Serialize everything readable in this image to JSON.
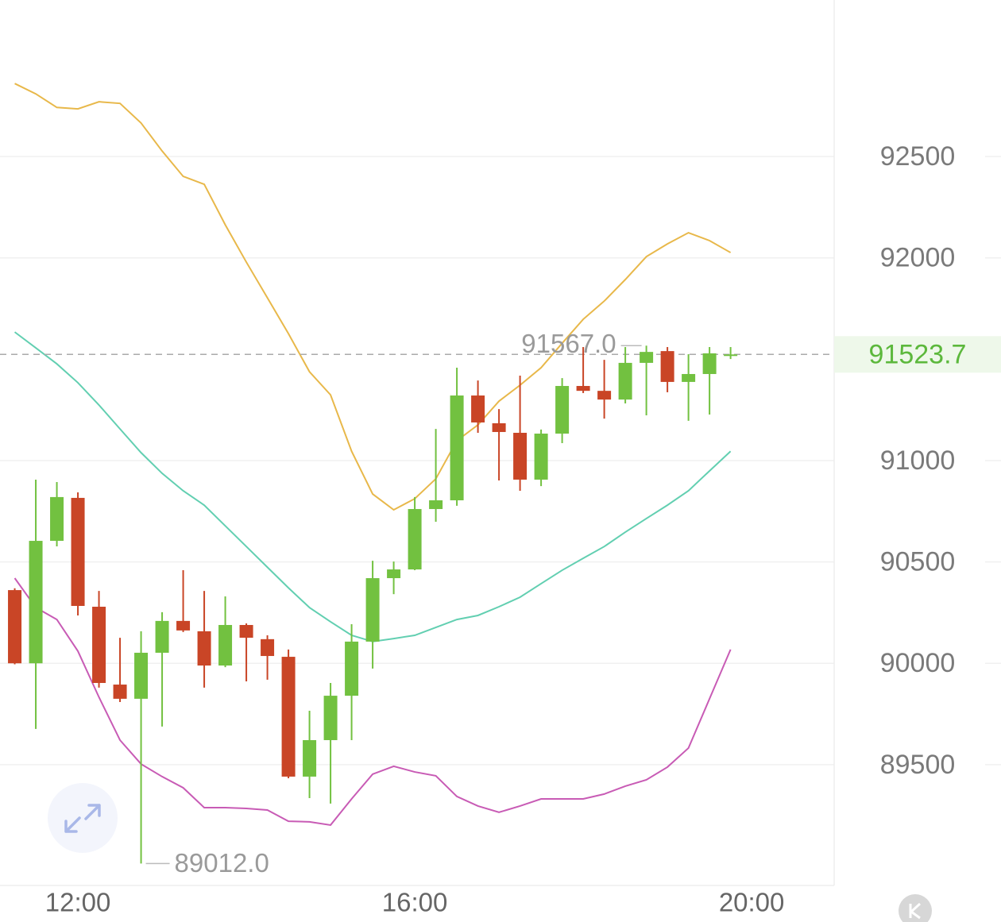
{
  "chart_data": {
    "type": "candlestick",
    "x": [
      11.25,
      11.5,
      11.75,
      12,
      12.25,
      12.5,
      12.75,
      13,
      13.25,
      13.5,
      13.75,
      14,
      14.25,
      14.5,
      14.75,
      15,
      15.25,
      15.5,
      15.75,
      16,
      16.25,
      16.5,
      16.75,
      17,
      17.25,
      17.5,
      17.75,
      18,
      18.25,
      18.5,
      18.75,
      19,
      19.25,
      19.5,
      19.75
    ],
    "open": [
      90361,
      90000,
      90604,
      90816,
      90279,
      89895,
      89825,
      90052,
      90209,
      90158,
      89989,
      90189,
      90119,
      90032,
      89441,
      89621,
      89840,
      90107,
      90420,
      90463,
      90761,
      90804,
      91321,
      91184,
      91137,
      90906,
      91133,
      91368,
      91344,
      91301,
      91482,
      91540,
      91388,
      91427,
      91517
    ],
    "high": [
      90370,
      90906,
      90894,
      90843,
      90357,
      90126,
      90158,
      90252,
      90459,
      90357,
      90330,
      90197,
      90138,
      90068,
      89766,
      89903,
      90193,
      90506,
      90502,
      90820,
      91156,
      91458,
      91395,
      91254,
      91419,
      91153,
      91407,
      91560,
      91497,
      91560,
      91567,
      91560,
      91525,
      91560,
      91560
    ],
    "low": [
      89995,
      89676,
      90577,
      90236,
      89880,
      89809,
      89012,
      89688,
      90154,
      89880,
      89981,
      89911,
      89919,
      89433,
      89335,
      89308,
      89621,
      89974,
      90341,
      90459,
      90698,
      90777,
      91137,
      90902,
      90851,
      90874,
      91086,
      91333,
      91207,
      91282,
      91223,
      91337,
      91196,
      91227,
      91501
    ],
    "close": [
      90000,
      90604,
      90820,
      90283,
      89903,
      89825,
      90052,
      90209,
      90162,
      89989,
      90189,
      90126,
      90036,
      89441,
      89621,
      89840,
      90107,
      90420,
      90463,
      90761,
      90804,
      91321,
      91188,
      91141,
      90906,
      91133,
      91368,
      91344,
      91301,
      91482,
      91536,
      91388,
      91427,
      91529,
      91523.7
    ],
    "up_color": "#72c140",
    "down_color": "#c94526",
    "bands": [
      {
        "color": "#e8b84a",
        "values": [
          92860,
          92809,
          92742,
          92735,
          92770,
          92762,
          92665,
          92527,
          92402,
          92363,
          92163,
          91979,
          91803,
          91626,
          91438,
          91324,
          91046,
          90835,
          90757,
          90812,
          90910,
          91098,
          91176,
          91293,
          91372,
          91458,
          91579,
          91697,
          91787,
          91893,
          92006,
          92069,
          92124,
          92085,
          92026
        ]
      },
      {
        "color": "#62cfb1",
        "values": [
          91634,
          91556,
          91477,
          91384,
          91274,
          91156,
          91039,
          90937,
          90851,
          90780,
          90678,
          90576,
          90474,
          90372,
          90275,
          90205,
          90138,
          90107,
          90122,
          90138,
          90177,
          90216,
          90236,
          90279,
          90326,
          90393,
          90459,
          90518,
          90576,
          90647,
          90714,
          90780,
          90851,
          90949,
          91046
        ]
      },
      {
        "color": "#c85bb5",
        "values": [
          90420,
          90275,
          90216,
          90060,
          89833,
          89621,
          89503,
          89441,
          89386,
          89288,
          89288,
          89284,
          89276,
          89221,
          89218,
          89202,
          89331,
          89453,
          89492,
          89464,
          89445,
          89343,
          89296,
          89265,
          89296,
          89331,
          89331,
          89331,
          89355,
          89394,
          89425,
          89488,
          89582,
          89825,
          90068
        ]
      }
    ],
    "last_price": 91523.7,
    "last_price_color": "#5cb83c",
    "high_annotation": {
      "value": 91567,
      "label": "91567.0"
    },
    "low_annotation": {
      "value": 89012,
      "label": "89012.0"
    },
    "xlim": [
      11.075,
      20.98
    ],
    "xticks": [
      {
        "value": 12,
        "label": "12:00"
      },
      {
        "value": 16,
        "label": "16:00"
      },
      {
        "value": 20,
        "label": "20:00"
      }
    ],
    "ylim": [
      88904,
      93272
    ],
    "yticks": [
      89500,
      90000,
      90500,
      91000,
      92000,
      92500
    ],
    "grid": true
  }
}
